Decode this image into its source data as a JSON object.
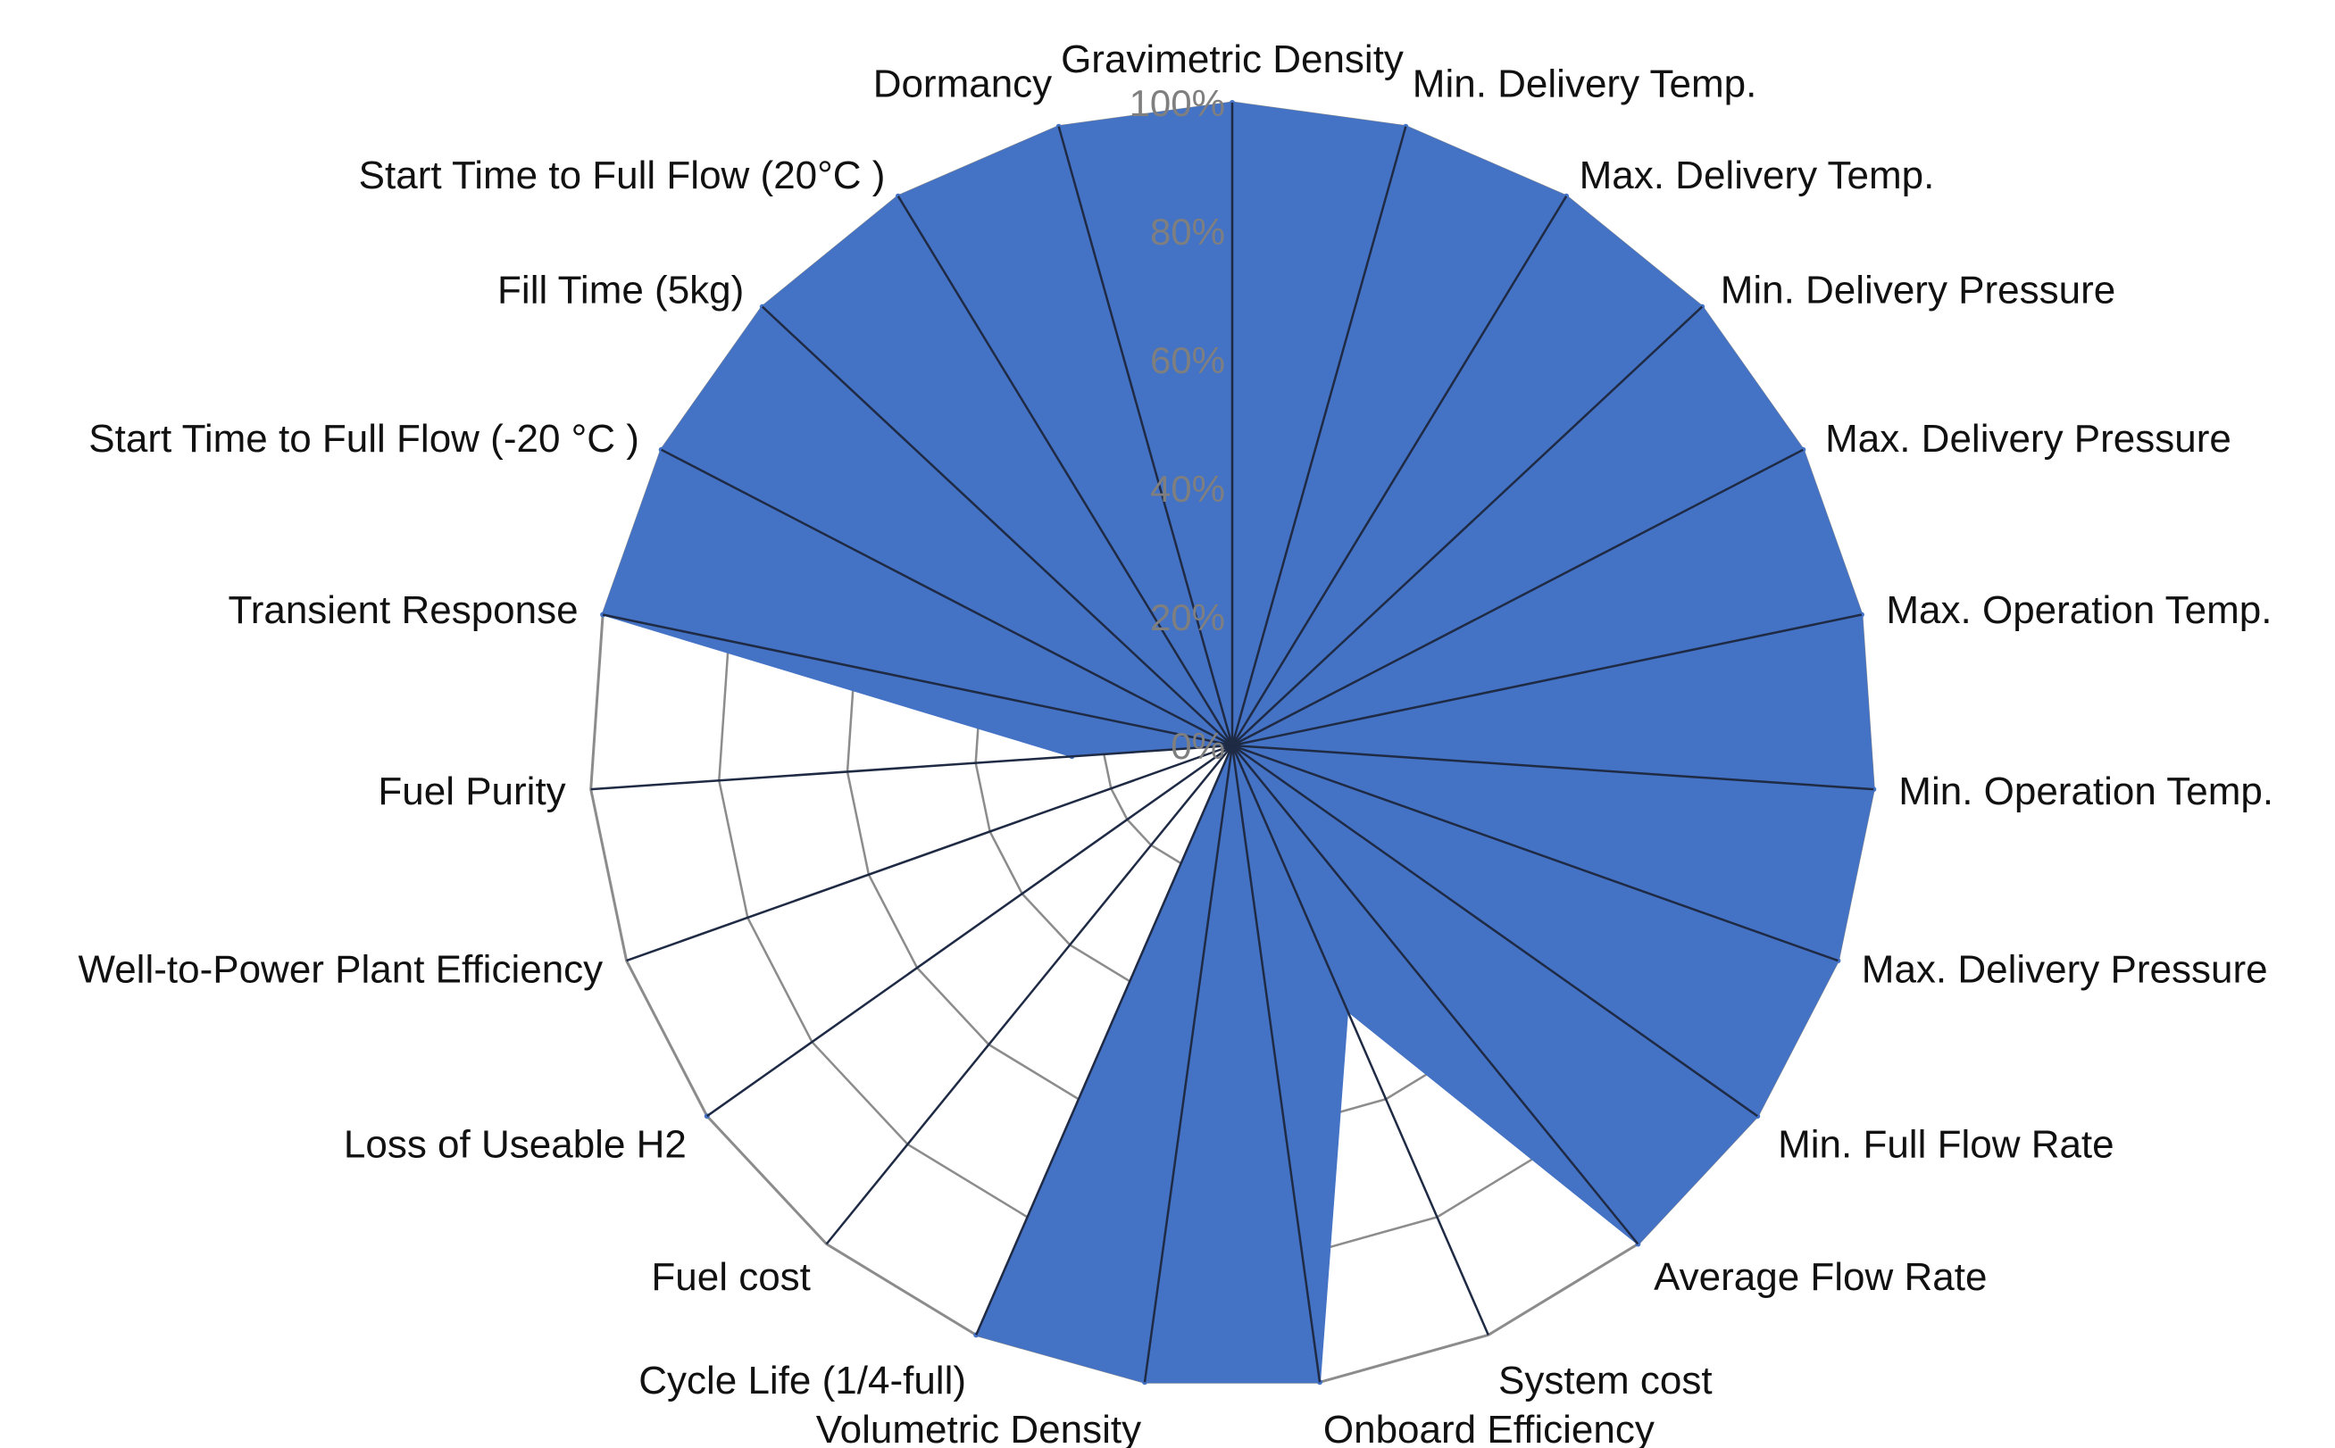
{
  "chart_data": {
    "type": "radar",
    "title": "",
    "rlim": [
      0,
      100
    ],
    "tick_labels": [
      "0%",
      "20%",
      "40%",
      "60%",
      "80%",
      "100%"
    ],
    "categories": [
      "Gravimetric Density",
      "Min. Delivery Temp.",
      "Max. Delivery Temp.",
      "Min. Delivery Pressure",
      "Max. Delivery Pressure",
      "Max. Operation Temp.",
      "Min. Operation Temp.",
      "Max. Delivery Pressure",
      "Min. Full Flow Rate",
      "Average Flow Rate",
      "System cost",
      "Onboard Efficiency",
      "Volumetric Density",
      "Cycle Life (1/4-full)",
      "Fuel cost",
      "Loss of Useable H2",
      "Well-to-Power Plant Efficiency",
      "Fuel Purity",
      "Transient Response",
      "Start Time to Full Flow (-20 °C )",
      "Fill Time (5kg)",
      "Start Time to Full Flow (20°C )",
      "Dormancy"
    ],
    "series": [
      {
        "name": "Status",
        "values": [
          100,
          100,
          100,
          100,
          100,
          100,
          100,
          100,
          100,
          100,
          45,
          100,
          100,
          100,
          0,
          100,
          0,
          25,
          100,
          100,
          100,
          100,
          100
        ]
      }
    ],
    "colors": {
      "fill": "#4472C4",
      "spoke": "#1f2a44",
      "grid": "#8c8c8c",
      "tick": "#7f7f7f"
    }
  }
}
